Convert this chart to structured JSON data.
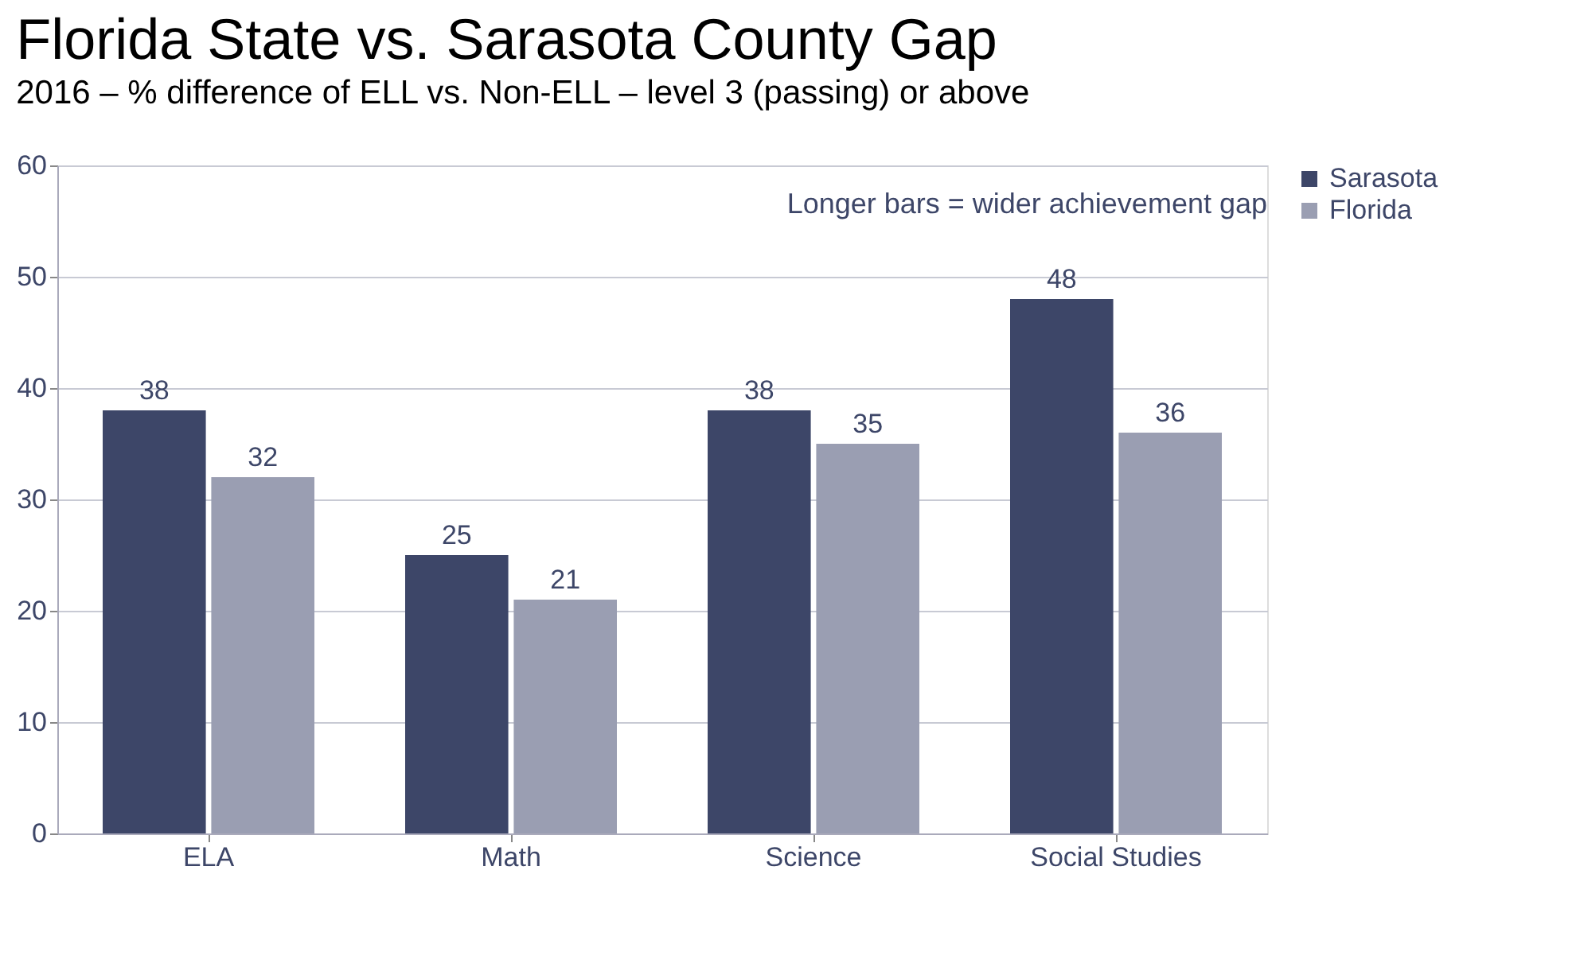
{
  "chart_data": {
    "type": "bar",
    "title": "Florida State vs. Sarasota County Gap",
    "subtitle": "2016 – % difference of ELL vs. Non-ELL – level 3 (passing) or above",
    "categories": [
      "ELA",
      "Math",
      "Science",
      "Social Studies"
    ],
    "series": [
      {
        "name": "Sarasota",
        "color": "#3d4668",
        "values": [
          38,
          25,
          38,
          48
        ]
      },
      {
        "name": "Florida",
        "color": "#9a9eb2",
        "values": [
          32,
          21,
          35,
          36
        ]
      }
    ],
    "ylim": [
      0,
      60
    ],
    "yticks": [
      0,
      10,
      20,
      30,
      40,
      50,
      60
    ],
    "grid": "y",
    "legend": "right",
    "data_labels": true,
    "annotations": [
      "Longer bars = wider achievement gap"
    ]
  }
}
